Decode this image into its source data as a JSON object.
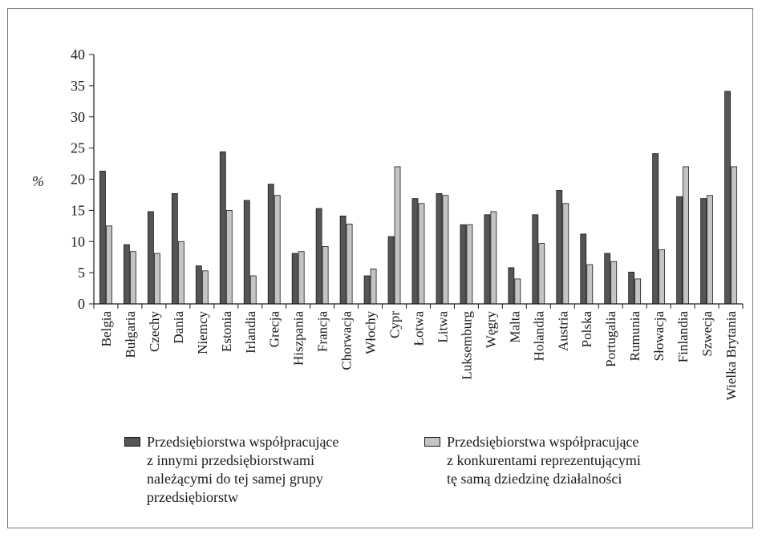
{
  "chart_data": {
    "type": "bar",
    "ylabel": "%",
    "ylim": [
      0,
      40
    ],
    "yticks": [
      0,
      5,
      10,
      15,
      20,
      25,
      30,
      35,
      40
    ],
    "grid": false,
    "legend_position": "bottom",
    "categories": [
      "Belgia",
      "Bułgaria",
      "Czechy",
      "Dania",
      "Niemcy",
      "Estonia",
      "Irlandia",
      "Grecja",
      "Hiszpania",
      "Francja",
      "Chorwacja",
      "Włochy",
      "Cypr",
      "Łotwa",
      "Litwa",
      "Luksemburg",
      "Węgry",
      "Malta",
      "Holandia",
      "Austria",
      "Polska",
      "Portugalia",
      "Rumunia",
      "Słowacja",
      "Finlandia",
      "Szwecja",
      "Wielka Brytania"
    ],
    "series": [
      {
        "name": "Przedsiębiorstwa współpracujące\nz innymi przedsiębiorstwami\nnależącymi do tej samej grupy\nprzedsiębiorstw",
        "color": "#555555",
        "values": [
          21.3,
          9.5,
          14.8,
          17.7,
          6.1,
          24.4,
          16.6,
          19.2,
          8.1,
          15.3,
          14.1,
          4.5,
          10.8,
          16.9,
          17.7,
          12.7,
          14.3,
          5.8,
          14.3,
          18.2,
          11.2,
          8.1,
          5.1,
          24.1,
          17.2,
          16.9,
          34.1
        ]
      },
      {
        "name": "Przedsiębiorstwa współpracujące\nz konkurentami reprezentującymi\ntę samą dziedzinę działalności",
        "color": "#c4c4c4",
        "values": [
          12.5,
          8.4,
          8.1,
          10.0,
          5.3,
          15.0,
          4.5,
          17.4,
          8.4,
          9.2,
          12.8,
          5.6,
          22.0,
          16.1,
          17.4,
          12.7,
          14.8,
          4.0,
          9.7,
          16.1,
          6.3,
          6.8,
          4.0,
          8.7,
          22.0,
          17.4,
          22.0
        ]
      }
    ]
  }
}
